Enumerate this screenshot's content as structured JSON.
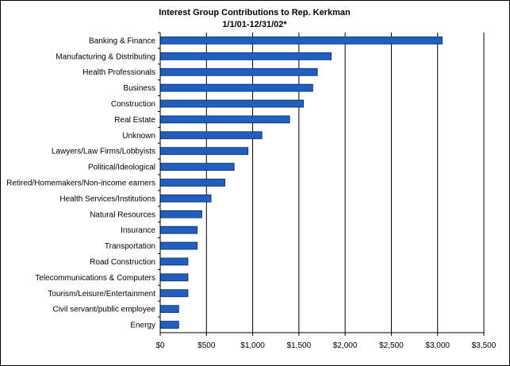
{
  "chart_data": {
    "type": "bar",
    "orientation": "horizontal",
    "title": "Interest Group Contributions to Rep. Kerkman",
    "subtitle": "1/1/01-12/31/02*",
    "categories": [
      "Banking & Finance",
      "Manufacturing & Distributing",
      "Health Professionals",
      "Business",
      "Construction",
      "Real Estate",
      "Unknown",
      "Lawyers/Law Firms/Lobbyists",
      "Political/Ideological",
      "Retired/Homemakers/Non-income earners",
      "Health Services/Institutions",
      "Natural Resources",
      "Insurance",
      "Transportation",
      "Road Construction",
      "Telecommunications & Computers",
      "Tourism/Leisure/Entertainment",
      "Civil servant/public employee",
      "Energy"
    ],
    "values": [
      3050,
      1850,
      1700,
      1650,
      1550,
      1400,
      1100,
      950,
      800,
      700,
      550,
      450,
      400,
      400,
      300,
      300,
      300,
      200,
      200
    ],
    "xlim": [
      0,
      3500
    ],
    "xticks": [
      0,
      500,
      1000,
      1500,
      2000,
      2500,
      3000,
      3500
    ],
    "xtick_labels": [
      "$0",
      "$500",
      "$1,000",
      "$1,500",
      "$2,000",
      "$2,500",
      "$3,000",
      "$3,500"
    ],
    "xlabel": "",
    "ylabel": "",
    "grid": true,
    "legend": "none",
    "bar_color": "#1f5fc0",
    "bar_edge_color": "#0a2a6a",
    "grid_color": "#000000"
  }
}
